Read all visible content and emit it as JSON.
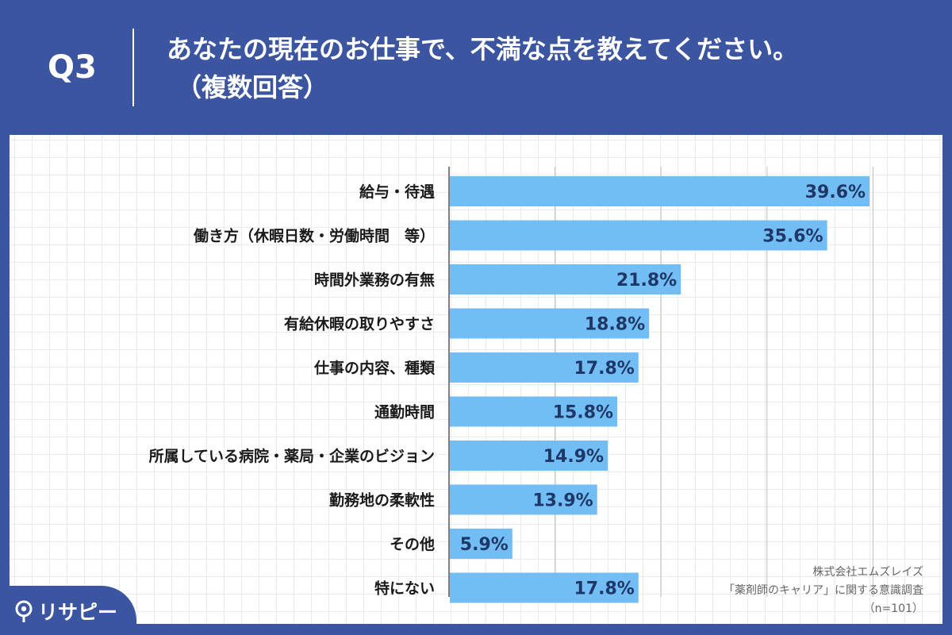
{
  "header": {
    "qnum": "Q3",
    "title_line1": "あなたの現在のお仕事で、不満な点を教えてください。",
    "title_line2": "（複数回答）"
  },
  "chart_data": {
    "type": "bar",
    "orientation": "horizontal",
    "categories": [
      "給与・待遇",
      "働き方（休暇日数・労働時間　等）",
      "時間外業務の有無",
      "有給休暇の取りやすさ",
      "仕事の内容、種類",
      "通勤時間",
      "所属している病院・薬局・企業のビジョン",
      "勤務地の柔軟性",
      "その他",
      "特にない"
    ],
    "values": [
      39.6,
      35.6,
      21.8,
      18.8,
      17.8,
      15.8,
      14.9,
      13.9,
      5.9,
      17.8
    ],
    "value_labels": [
      "39.6%",
      "35.6%",
      "21.8%",
      "18.8%",
      "17.8%",
      "15.8%",
      "14.9%",
      "13.9%",
      "5.9%",
      "17.8%"
    ],
    "xlim": [
      0,
      40
    ],
    "gridlines": [
      0,
      10,
      20,
      30,
      40
    ],
    "bar_color": "#73bdf5",
    "value_label_color": "#1f3766",
    "title": "",
    "xlabel": "",
    "ylabel": ""
  },
  "source": {
    "line1": "株式会社エムズレイズ",
    "line2": "「薬剤師のキャリア」に関する意識調査",
    "line3": "（n=101）"
  },
  "logo": {
    "text": "リサピー"
  },
  "colors": {
    "background": "#3b55a0",
    "panel": "#ffffff"
  }
}
